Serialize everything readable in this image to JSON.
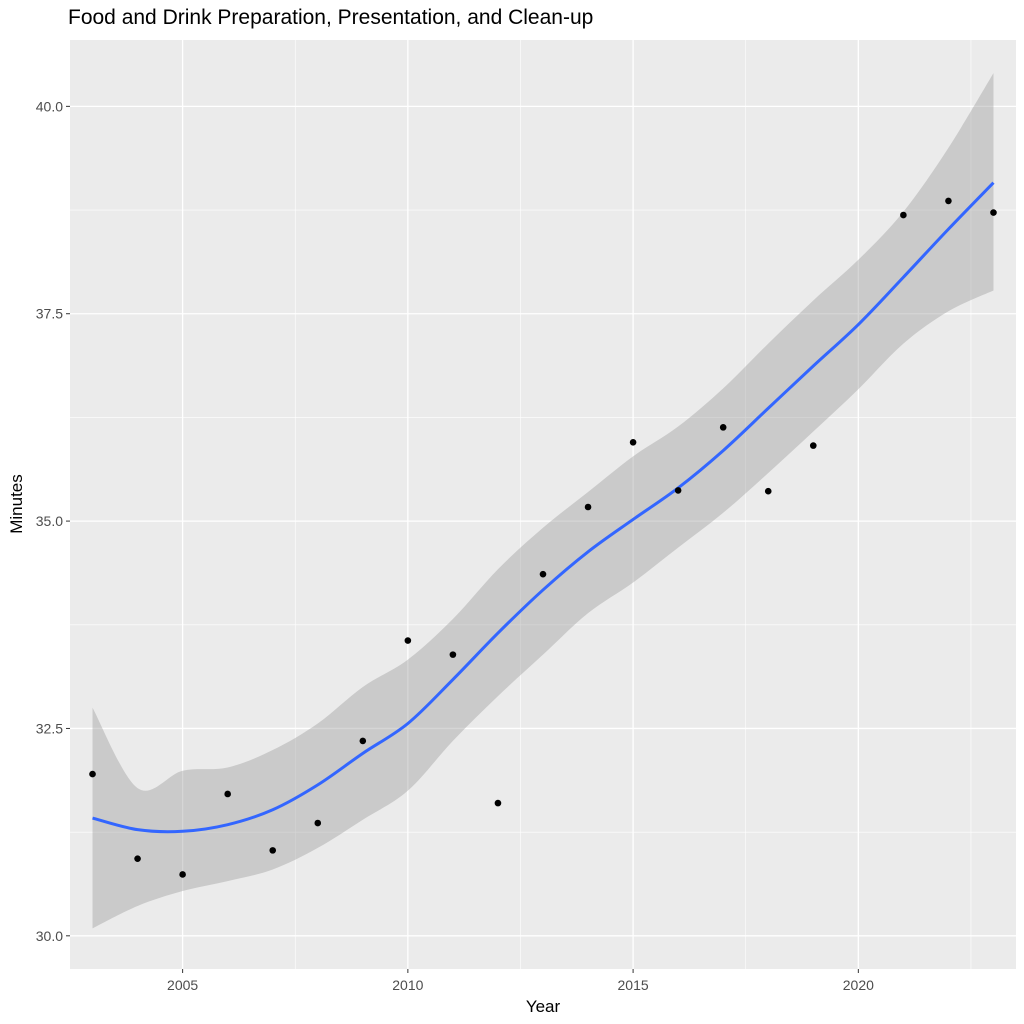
{
  "chart_data": {
    "type": "scatter",
    "title": "Food and Drink Preparation, Presentation, and Clean-up",
    "xlabel": "Year",
    "ylabel": "Minutes",
    "xlim": [
      2002.5,
      2023.5
    ],
    "ylim": [
      29.6,
      40.8
    ],
    "x_ticks": [
      2005,
      2010,
      2015,
      2020
    ],
    "y_ticks": [
      30.0,
      32.5,
      35.0,
      37.5,
      40.0
    ],
    "x_tick_labels": [
      "2005",
      "2010",
      "2015",
      "2020"
    ],
    "y_tick_labels": [
      "30.0",
      "32.5",
      "35.0",
      "37.5",
      "40.0"
    ],
    "grid": true,
    "legend": "none",
    "series": [
      {
        "type": "scatter",
        "x": [
          2003,
          2004,
          2005,
          2006,
          2007,
          2008,
          2009,
          2010,
          2011,
          2012,
          2013,
          2014,
          2015,
          2016,
          2017,
          2018,
          2019,
          2021,
          2022,
          2023
        ],
        "y": [
          31.95,
          30.93,
          30.74,
          31.71,
          31.03,
          31.36,
          32.35,
          33.56,
          33.39,
          31.6,
          34.36,
          35.17,
          35.95,
          35.37,
          36.13,
          35.36,
          35.91,
          38.69,
          38.86,
          38.72
        ]
      },
      {
        "type": "smooth",
        "x": [
          2003,
          2004,
          2005,
          2006,
          2007,
          2008,
          2009,
          2010,
          2011,
          2012,
          2013,
          2014,
          2015,
          2016,
          2017,
          2018,
          2019,
          2020,
          2021,
          2022,
          2023
        ],
        "y": [
          31.42,
          31.28,
          31.26,
          31.34,
          31.52,
          31.82,
          32.2,
          32.56,
          33.09,
          33.65,
          34.17,
          34.63,
          35.02,
          35.4,
          35.85,
          36.36,
          36.87,
          37.37,
          37.94,
          38.52,
          39.08
        ],
        "lower": [
          30.09,
          30.36,
          30.54,
          30.66,
          30.8,
          31.06,
          31.4,
          31.75,
          32.35,
          32.89,
          33.39,
          33.89,
          34.26,
          34.68,
          35.1,
          35.58,
          36.08,
          36.59,
          37.14,
          37.53,
          37.78
        ],
        "upper": [
          32.75,
          31.78,
          31.99,
          32.03,
          32.24,
          32.56,
          33.0,
          33.33,
          33.82,
          34.42,
          34.92,
          35.35,
          35.78,
          36.14,
          36.6,
          37.14,
          37.66,
          38.15,
          38.73,
          39.5,
          40.4
        ]
      }
    ],
    "colors": {
      "panel": "#ebebeb",
      "grid": "#ffffff",
      "points": "#000000",
      "line": "#3366ff",
      "ribbon": "#999999"
    }
  }
}
